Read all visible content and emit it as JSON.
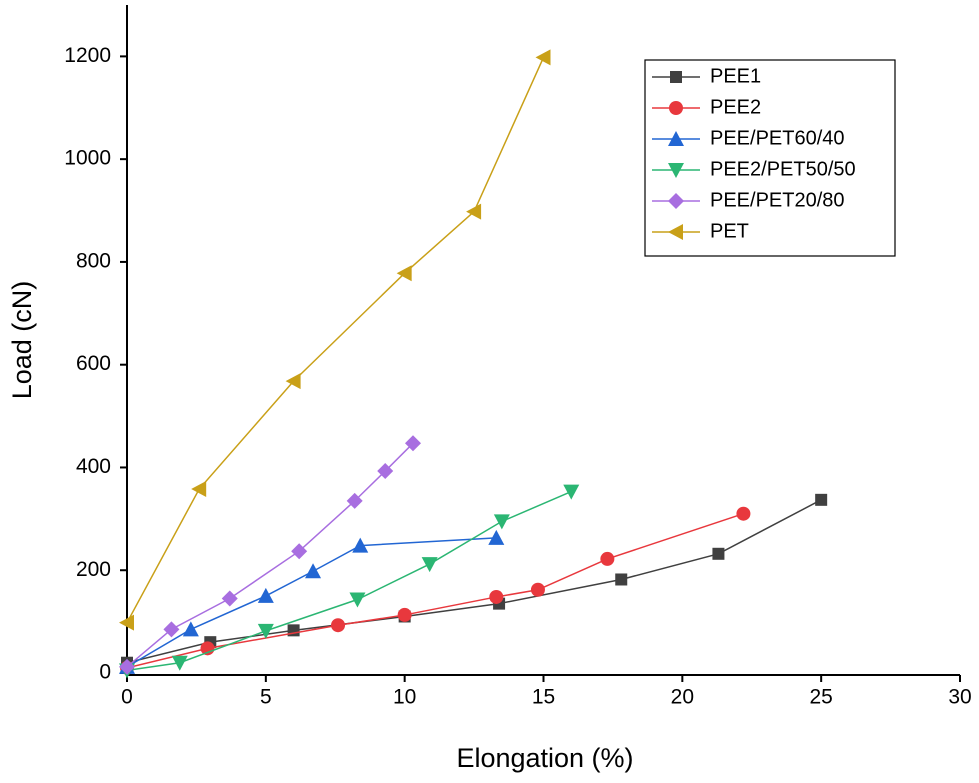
{
  "chart_data": {
    "type": "line",
    "xlabel": "Elongation (%)",
    "ylabel": "Load (cN)",
    "xlim": [
      0,
      30
    ],
    "ylim": [
      0,
      1300
    ],
    "xticks": [
      0,
      5,
      10,
      15,
      20,
      25,
      30
    ],
    "yticks": [
      0,
      200,
      400,
      600,
      800,
      1000,
      1200
    ],
    "grid": false,
    "legend": "upper right",
    "series": [
      {
        "name": "PEE1",
        "color": "#404040",
        "marker": "square",
        "x": [
          0,
          3,
          6,
          10,
          13.4,
          17.8,
          21.3,
          25
        ],
        "values": [
          20,
          60,
          83,
          110,
          135,
          182,
          232,
          337
        ]
      },
      {
        "name": "PEE2",
        "color": "#e8383d",
        "marker": "circle",
        "x": [
          0,
          2.9,
          7.6,
          10,
          13.3,
          14.8,
          17.3,
          22.2
        ],
        "values": [
          10,
          48,
          93,
          113,
          148,
          162,
          222,
          310
        ]
      },
      {
        "name": "PEE/PET60/40",
        "color": "#2266d3",
        "marker": "triangle-up",
        "x": [
          0,
          2.3,
          5,
          6.7,
          8.4,
          13.3
        ],
        "values": [
          12,
          85,
          150,
          198,
          248,
          263
        ]
      },
      {
        "name": "PEE2/PET50/50",
        "color": "#2bb673",
        "marker": "triangle-down",
        "x": [
          0,
          1.9,
          5,
          8.3,
          10.9,
          13.5,
          16
        ],
        "values": [
          5,
          20,
          82,
          143,
          212,
          295,
          353
        ]
      },
      {
        "name": "PEE/PET20/80",
        "color": "#a86ee0",
        "marker": "diamond",
        "x": [
          0,
          1.6,
          3.7,
          6.2,
          8.2,
          9.3,
          10.3
        ],
        "values": [
          12,
          85,
          145,
          237,
          335,
          393,
          447
        ]
      },
      {
        "name": "PET",
        "color": "#c9a018",
        "marker": "triangle-left",
        "x": [
          0,
          2.6,
          6,
          10,
          12.5,
          15
        ],
        "values": [
          98,
          358,
          568,
          778,
          898,
          1198
        ]
      }
    ]
  }
}
